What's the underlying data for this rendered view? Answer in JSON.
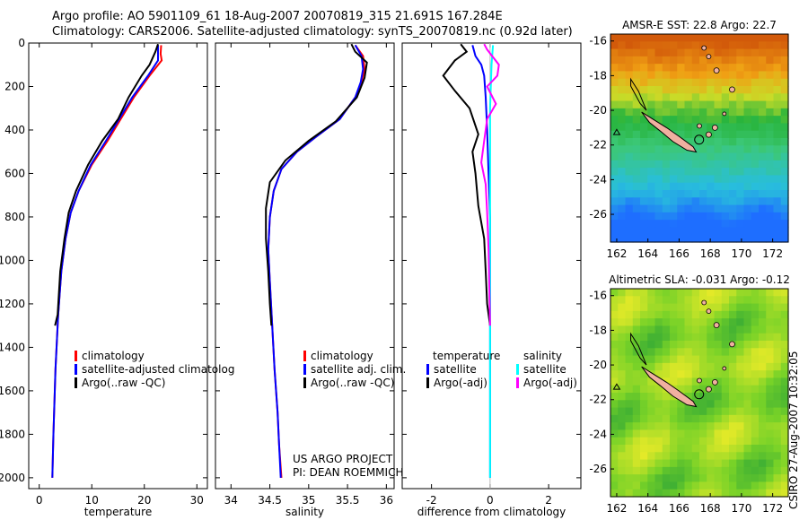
{
  "header": {
    "line1": "Argo profile: AO 5901109_61 18-Aug-2007 20070819_315 21.691S 167.284E",
    "line2": "Climatology: CARS2006. Satellite-adjusted climatology: synTS_20070819.nc (0.92d later)"
  },
  "side_label": "CSIRO 27-Aug-2007 10:32:05",
  "colors": {
    "climatology": "#ff0000",
    "satellite": "#0000ff",
    "argo": "#000000",
    "salinity_satellite": "#00ffff",
    "salinity_argo": "#ff00ff",
    "coastline": "#000000",
    "land": "#f0b0a0"
  },
  "chart_data": [
    {
      "id": "temperature",
      "type": "line",
      "xlabel": "temperature",
      "ylabel": "",
      "xlim": [
        -2,
        32
      ],
      "ylim": [
        2050,
        0
      ],
      "xticks": [
        0,
        10,
        20,
        30
      ],
      "yticks": [
        0,
        200,
        400,
        600,
        800,
        1000,
        1200,
        1400,
        1600,
        1800,
        2000
      ],
      "legend": [
        "climatology",
        "satellite-adjusted climatolog",
        "Argo(..raw -QC)"
      ],
      "series": [
        {
          "name": "climatology",
          "points": [
            [
              23.2,
              10
            ],
            [
              23.1,
              50
            ],
            [
              23.3,
              80
            ],
            [
              21.0,
              150
            ],
            [
              18.0,
              250
            ],
            [
              15.5,
              350
            ],
            [
              13.0,
              450
            ],
            [
              10.0,
              560
            ],
            [
              7.5,
              680
            ],
            [
              6.0,
              780
            ],
            [
              5.0,
              900
            ],
            [
              4.2,
              1050
            ],
            [
              3.6,
              1250
            ],
            [
              3.1,
              1500
            ],
            [
              2.7,
              1800
            ],
            [
              2.5,
              2000
            ]
          ]
        },
        {
          "name": "satellite-adjusted climatolog",
          "points": [
            [
              22.6,
              10
            ],
            [
              22.6,
              50
            ],
            [
              22.6,
              80
            ],
            [
              20.7,
              150
            ],
            [
              17.7,
              250
            ],
            [
              15.2,
              350
            ],
            [
              12.7,
              450
            ],
            [
              9.8,
              560
            ],
            [
              7.5,
              680
            ],
            [
              6.0,
              780
            ],
            [
              5.0,
              900
            ],
            [
              4.2,
              1050
            ],
            [
              3.6,
              1250
            ],
            [
              3.1,
              1500
            ],
            [
              2.7,
              1800
            ],
            [
              2.5,
              2000
            ]
          ]
        },
        {
          "name": "Argo(..raw -QC)",
          "points": [
            [
              22.6,
              5
            ],
            [
              22.1,
              40
            ],
            [
              21.0,
              100
            ],
            [
              19.5,
              150
            ],
            [
              17.0,
              250
            ],
            [
              15.0,
              350
            ],
            [
              12.0,
              450
            ],
            [
              9.3,
              560
            ],
            [
              7.0,
              680
            ],
            [
              5.6,
              780
            ],
            [
              4.8,
              900
            ],
            [
              4.0,
              1050
            ],
            [
              3.5,
              1250
            ],
            [
              3.0,
              1300
            ]
          ]
        }
      ]
    },
    {
      "id": "salinity",
      "type": "line",
      "xlabel": "salinity",
      "ylabel": "",
      "xlim": [
        33.8,
        36.1
      ],
      "ylim": [
        2050,
        0
      ],
      "xticks": [
        34,
        34.5,
        35,
        35.5,
        36
      ],
      "legend": [
        "climatology",
        "satellite adj. clim.",
        "Argo(..raw -QC)"
      ],
      "annotation": [
        "US ARGO PROJECT",
        "PI: DEAN ROEMMICH"
      ],
      "series": [
        {
          "name": "climatology",
          "points": [
            [
              35.6,
              10
            ],
            [
              35.7,
              60
            ],
            [
              35.72,
              120
            ],
            [
              35.68,
              180
            ],
            [
              35.6,
              250
            ],
            [
              35.4,
              350
            ],
            [
              35.1,
              430
            ],
            [
              34.85,
              500
            ],
            [
              34.65,
              580
            ],
            [
              34.55,
              680
            ],
            [
              34.5,
              800
            ],
            [
              34.48,
              950
            ],
            [
              34.5,
              1100
            ],
            [
              34.53,
              1300
            ],
            [
              34.56,
              1500
            ],
            [
              34.6,
              1700
            ],
            [
              34.62,
              1850
            ],
            [
              34.65,
              2000
            ]
          ]
        },
        {
          "name": "satellite adj. clim.",
          "points": [
            [
              35.6,
              10
            ],
            [
              35.68,
              60
            ],
            [
              35.7,
              120
            ],
            [
              35.67,
              180
            ],
            [
              35.6,
              250
            ],
            [
              35.4,
              350
            ],
            [
              35.1,
              430
            ],
            [
              34.85,
              500
            ],
            [
              34.65,
              580
            ],
            [
              34.55,
              680
            ],
            [
              34.5,
              800
            ],
            [
              34.48,
              950
            ],
            [
              34.5,
              1100
            ],
            [
              34.53,
              1300
            ],
            [
              34.56,
              1500
            ],
            [
              34.6,
              1700
            ],
            [
              34.62,
              1850
            ],
            [
              34.64,
              2000
            ]
          ]
        },
        {
          "name": "Argo(..raw -QC)",
          "points": [
            [
              35.55,
              5
            ],
            [
              35.6,
              40
            ],
            [
              35.75,
              90
            ],
            [
              35.72,
              160
            ],
            [
              35.62,
              250
            ],
            [
              35.35,
              360
            ],
            [
              35.0,
              450
            ],
            [
              34.7,
              540
            ],
            [
              34.5,
              640
            ],
            [
              34.45,
              760
            ],
            [
              34.45,
              900
            ],
            [
              34.48,
              1050
            ],
            [
              34.5,
              1200
            ],
            [
              34.52,
              1300
            ]
          ]
        }
      ]
    },
    {
      "id": "difference",
      "type": "line",
      "xlabel": "difference from climatology",
      "ylabel": "",
      "xlim": [
        -3.0,
        3.1
      ],
      "ylim": [
        2050,
        0
      ],
      "xticks": [
        -2,
        0,
        2
      ],
      "legend": [
        "temperature",
        "satellite",
        "Argo(-adj)",
        "salinity",
        "satellite",
        "Argo(-adj)"
      ],
      "series": [
        {
          "name": "satellite",
          "points": [
            [
              -0.6,
              10
            ],
            [
              -0.5,
              60
            ],
            [
              -0.3,
              100
            ],
            [
              -0.2,
              150
            ],
            [
              -0.15,
              250
            ],
            [
              -0.1,
              400
            ],
            [
              -0.05,
              600
            ],
            [
              0,
              800
            ],
            [
              0,
              2000
            ]
          ]
        },
        {
          "name": "Argo(-adj)",
          "points": [
            [
              -1.0,
              5
            ],
            [
              -0.8,
              40
            ],
            [
              -1.2,
              80
            ],
            [
              -1.6,
              150
            ],
            [
              -1.2,
              220
            ],
            [
              -0.7,
              300
            ],
            [
              -0.4,
              420
            ],
            [
              -0.6,
              500
            ],
            [
              -0.5,
              600
            ],
            [
              -0.4,
              750
            ],
            [
              -0.2,
              900
            ],
            [
              -0.15,
              1050
            ],
            [
              -0.1,
              1200
            ],
            [
              0,
              1300
            ]
          ]
        },
        {
          "name": "satellite",
          "points": [
            [
              0.1,
              10
            ],
            [
              0.05,
              100
            ],
            [
              0,
              300
            ],
            [
              0,
              2000
            ]
          ]
        },
        {
          "name": "Argo(-adj)",
          "points": [
            [
              -0.2,
              5
            ],
            [
              -0.1,
              30
            ],
            [
              0.3,
              100
            ],
            [
              0.25,
              150
            ],
            [
              -0.1,
              200
            ],
            [
              0.2,
              280
            ],
            [
              -0.1,
              350
            ],
            [
              -0.2,
              450
            ],
            [
              -0.3,
              550
            ],
            [
              -0.15,
              650
            ],
            [
              -0.1,
              780
            ],
            [
              -0.05,
              950
            ],
            [
              0,
              1300
            ]
          ]
        }
      ]
    },
    {
      "id": "sst_map",
      "type": "heatmap",
      "title": "AMSR-E SST: 22.8  Argo: 22.7",
      "xlim": [
        161.6,
        173
      ],
      "ylim": [
        -27.6,
        -15.6
      ],
      "xticks": [
        162,
        164,
        166,
        168,
        170,
        172
      ],
      "yticks": [
        -16,
        -18,
        -20,
        -22,
        -24,
        -26
      ],
      "marker": [
        167.284,
        -21.691
      ]
    },
    {
      "id": "sla_map",
      "type": "heatmap",
      "title": "Altimetric SLA: -0.031  Argo: -0.12",
      "xlim": [
        161.6,
        173
      ],
      "ylim": [
        -27.6,
        -15.6
      ],
      "xticks": [
        162,
        164,
        166,
        168,
        170,
        172
      ],
      "yticks": [
        -16,
        -18,
        -20,
        -22,
        -24,
        -26
      ],
      "marker": [
        167.284,
        -21.691
      ]
    }
  ]
}
